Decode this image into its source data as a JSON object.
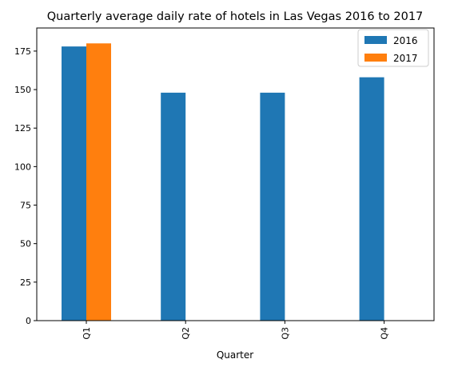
{
  "chart_data": {
    "type": "bar",
    "title": "Quarterly average daily rate of hotels in Las Vegas 2016 to 2017",
    "xlabel": "Quarter",
    "ylabel": "",
    "categories": [
      "Q1",
      "Q2",
      "Q3",
      "Q4"
    ],
    "series": [
      {
        "name": "2016",
        "color": "#1f77b4",
        "values": [
          178,
          148,
          148,
          158
        ]
      },
      {
        "name": "2017",
        "color": "#ff7f0e",
        "values": [
          180,
          null,
          null,
          null
        ]
      }
    ],
    "ylim": [
      0,
      190
    ],
    "yticks": [
      0,
      25,
      50,
      75,
      100,
      125,
      150,
      175
    ],
    "grid": false,
    "legend_position": "top-right"
  }
}
